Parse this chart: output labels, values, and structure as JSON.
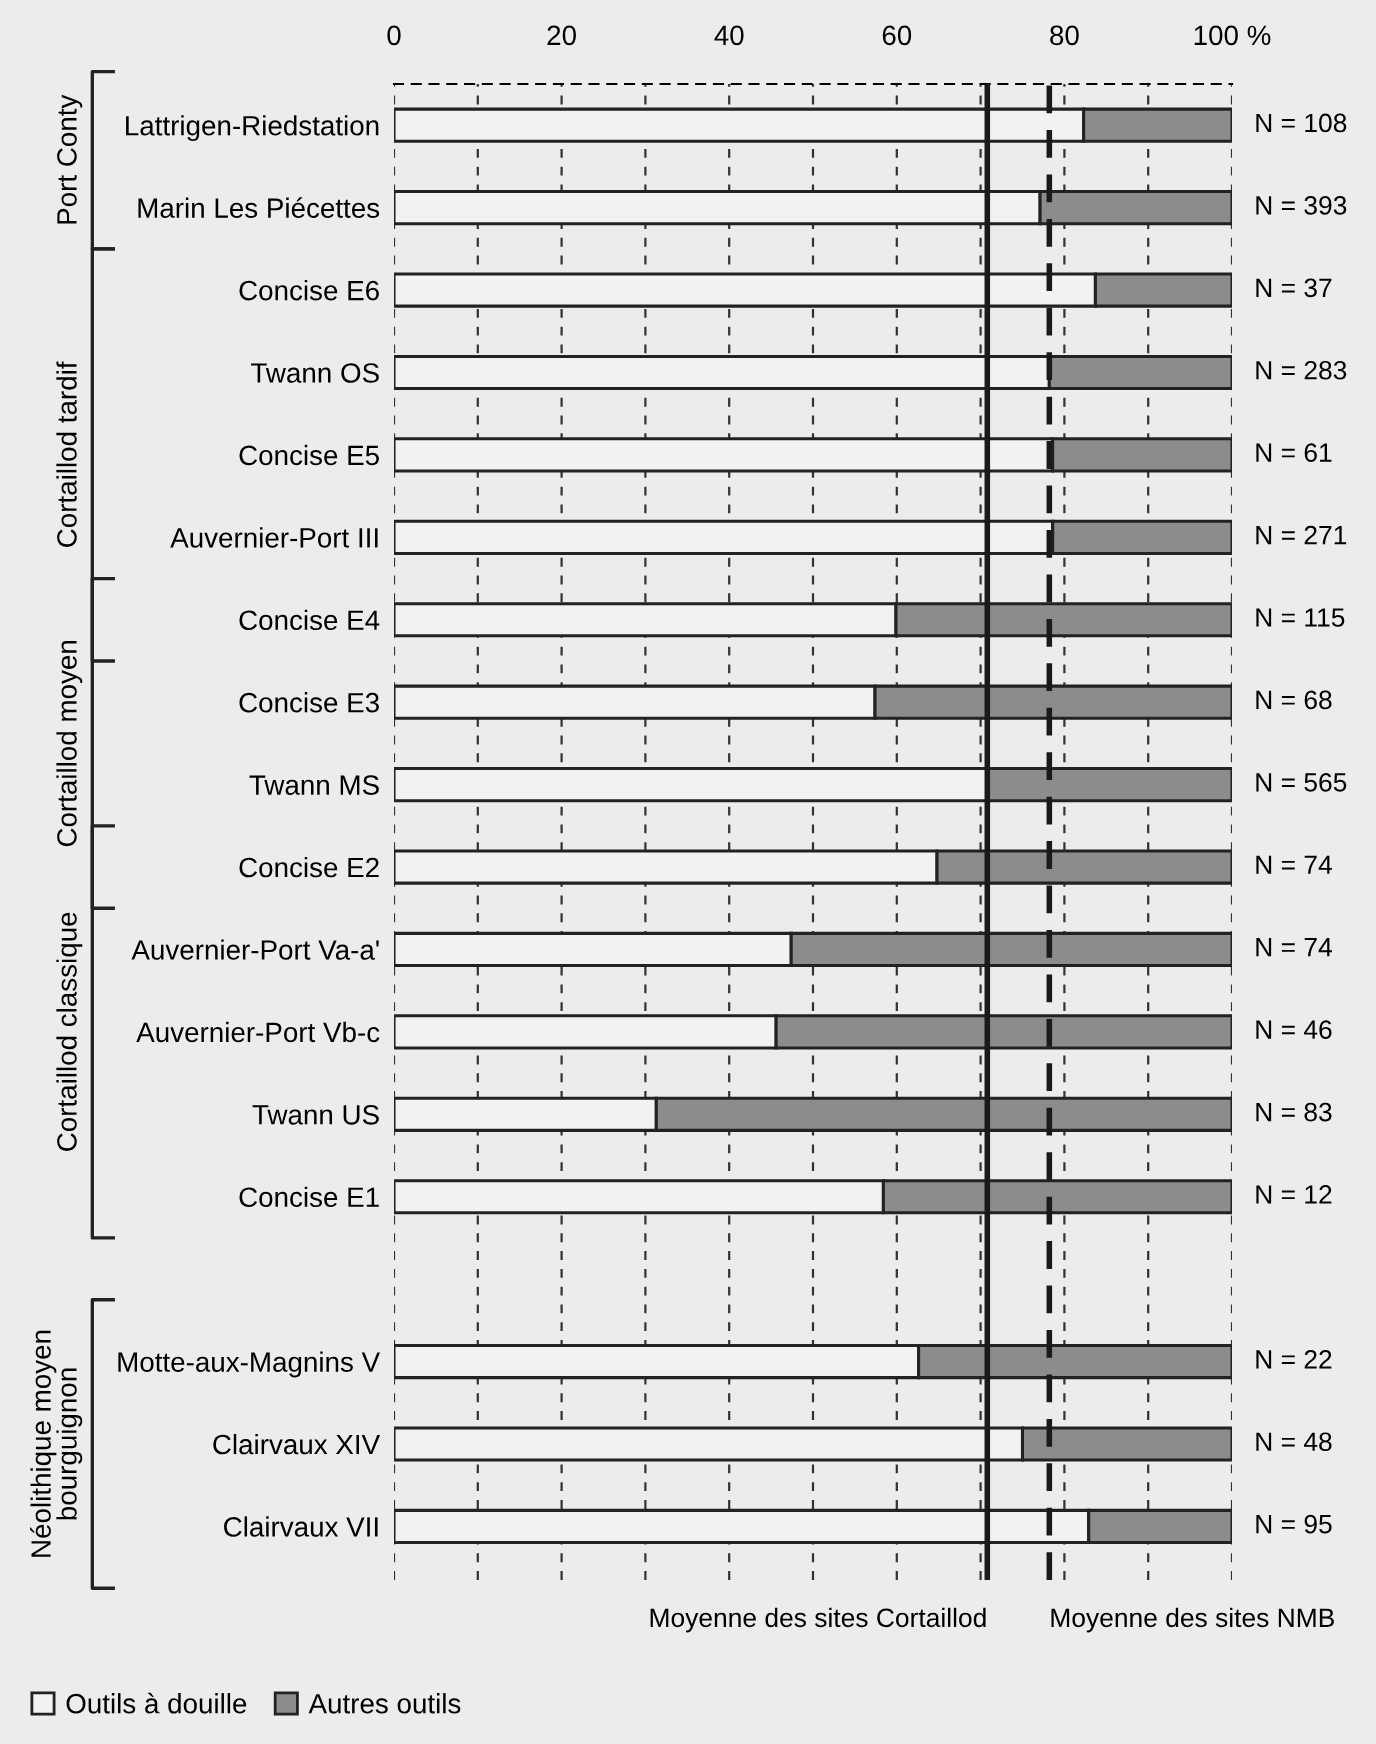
{
  "chart_data": {
    "type": "bar",
    "orientation": "horizontal",
    "stacked": true,
    "categories": [
      "Lattrigen-Riedstation",
      "Marin Les Piécettes",
      "Concise E6",
      "Twann OS",
      "Concise E5",
      "Auvernier-Port III",
      "Concise E4",
      "Concise E3",
      "Twann MS",
      "Concise E2",
      "Auvernier-Port Va-a'",
      "Auvernier-Port Vb-c",
      "Twann US",
      "Concise E1",
      null,
      "Motte-aux-Magnins V",
      "Clairvaux XIV",
      "Clairvaux VII"
    ],
    "series": [
      {
        "name": "Outils à douille",
        "color": "#f2f2f2",
        "values": [
          82.3,
          77.1,
          83.7,
          78.2,
          78.6,
          78.6,
          59.9,
          57.4,
          70.8,
          64.8,
          47.4,
          45.6,
          31.3,
          58.4,
          null,
          62.6,
          75.0,
          82.9
        ]
      },
      {
        "name": "Autres outils",
        "color": "#8c8c8c",
        "values": [
          17.7,
          22.9,
          16.3,
          21.8,
          21.4,
          21.4,
          40.1,
          42.6,
          29.2,
          35.2,
          52.6,
          54.4,
          68.7,
          41.6,
          null,
          37.4,
          25.0,
          17.1
        ]
      }
    ],
    "xlim": [
      0,
      100
    ],
    "xticks": [
      0,
      {
        "value": 10,
        "label": null
      },
      20,
      {
        "value": 30,
        "label": null
      },
      40,
      {
        "value": 50,
        "label": null
      },
      60,
      {
        "value": 70,
        "label": null
      },
      80,
      {
        "value": 90,
        "label": null
      },
      {
        "value": 100,
        "label": "100 %"
      }
    ],
    "grid": "x",
    "legend": "bottom left",
    "ref_lines": [
      {
        "axis": "x",
        "value": 70.8,
        "label": "Moyenne des sites Cortaillod",
        "line_style": "solid",
        "color": "#1a1a1a"
      },
      {
        "axis": "x",
        "value": 78.2,
        "label": "Moyenne des sites NMB",
        "line_style": "dashed",
        "color": "#1a1a1a"
      }
    ],
    "annotations": [
      "N = 108",
      "N = 393",
      "N = 37",
      "N = 283",
      "N = 61",
      "N = 271",
      "N = 115",
      "N = 68",
      "N = 565",
      "N = 74",
      "N = 74",
      "N = 46",
      "N = 83",
      "N = 12",
      "N = 22",
      "N = 48",
      "N = 95",
      "Port Conty",
      "Cortaillod tardif",
      "Cortaillod moyen",
      "Cortaillod classique",
      "Néolithique moyen\nbourguignon"
    ]
  }
}
